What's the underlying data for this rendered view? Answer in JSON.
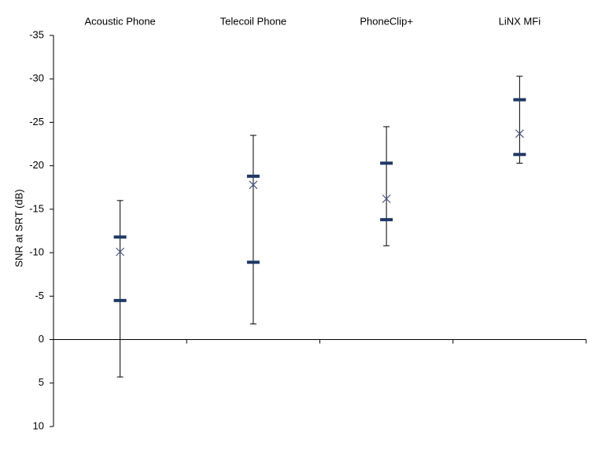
{
  "chart_data": {
    "type": "box",
    "y_label": "SNR at SRT (dB)",
    "categories": [
      "Acoustic Phone",
      "Telecoil Phone",
      "PhoneClip+",
      "LiNX MFi"
    ],
    "whisker_high": [
      -16,
      -23.5,
      -24.5,
      -30.3
    ],
    "q3": [
      -11.8,
      -18.8,
      -20.3,
      -27.6
    ],
    "mean": [
      -10.1,
      -17.8,
      -16.2,
      -23.7
    ],
    "q1": [
      -4.5,
      -8.9,
      -13.8,
      -21.3
    ],
    "whisker_low": [
      4.3,
      -1.8,
      -10.8,
      -20.3
    ],
    "ylim": [
      -35,
      10
    ],
    "invert_y": true,
    "yticks": [
      -35,
      -30,
      -25,
      -20,
      -15,
      -10,
      -5,
      0,
      5,
      10
    ],
    "box_color": "#1f3864",
    "mean_color": "#4a5680",
    "whisker_color": "#000000"
  }
}
